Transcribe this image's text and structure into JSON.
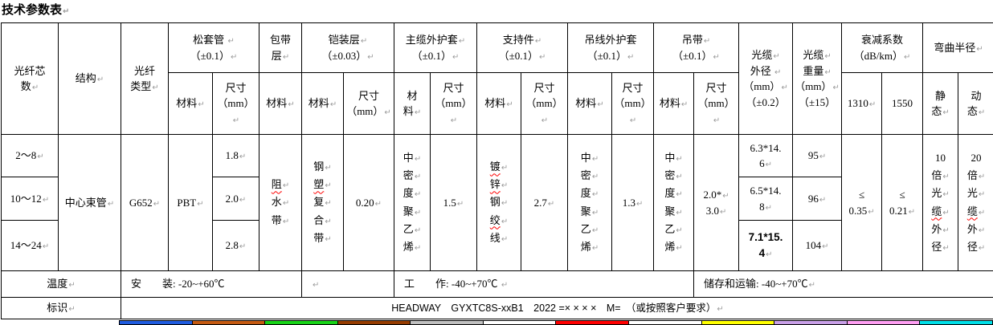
{
  "title": {
    "text": "技术参数表"
  },
  "marks": {
    "pilcrow": "↵"
  },
  "header": {
    "core": {
      "lines": [
        {
          "t": "光纤芯"
        },
        {
          "t": "数",
          "m": 1
        }
      ]
    },
    "structure": {
      "lines": [
        {
          "t": "结构",
          "m": 1
        }
      ]
    },
    "fiber_type": {
      "lines": [
        {
          "t": "光纤"
        },
        {
          "t": "类型",
          "m": 1
        }
      ]
    },
    "loose_tube": {
      "lines": [
        {
          "t": "松套管 ",
          "m": 1
        },
        {
          "t": "（±0.1）",
          "m": 1
        }
      ]
    },
    "wrap_layer": {
      "lines": [
        {
          "t": "包带"
        },
        {
          "t": "层",
          "m": 1
        }
      ]
    },
    "armor_layer": {
      "lines": [
        {
          "t": "铠装层",
          "m": 1
        },
        {
          "t": "（±0.03）",
          "m": 1
        }
      ]
    },
    "main_sheath": {
      "lines": [
        {
          "t": "主缆外护套",
          "m": 1
        },
        {
          "t": "（±0.1）",
          "m": 1
        }
      ]
    },
    "support": {
      "lines": [
        {
          "t": "支持件",
          "m": 1
        },
        {
          "t": "（±0.1）",
          "m": 1
        }
      ]
    },
    "msg_sheath": {
      "lines": [
        {
          "t": "吊线外护套"
        },
        {
          "t": "（±0.1）",
          "m": 1
        }
      ]
    },
    "strap": {
      "lines": [
        {
          "t": "吊带",
          "m": 1
        },
        {
          "t": "（±0.1）",
          "m": 1
        }
      ]
    },
    "cable_od": {
      "lines": [
        {
          "t": "光缆",
          "m": 1
        },
        {
          "t": "外径 ",
          "m": 1
        },
        {
          "t": "（mm）",
          "m": 1
        },
        {
          "t": "（±0.2）"
        }
      ]
    },
    "cable_weight": {
      "lines": [
        {
          "t": "光缆",
          "m": 1
        },
        {
          "t": "重量",
          "m": 1
        },
        {
          "t": "（mm）",
          "m": 1
        },
        {
          "t": "（±15）"
        }
      ]
    },
    "attenuation": {
      "lines": [
        {
          "t": "衰减系数"
        },
        {
          "t": "（dB/km）",
          "m": 1
        }
      ]
    },
    "bend_radius": {
      "lines": [
        {
          "t": "弯曲半径",
          "m": 1
        }
      ]
    },
    "material": {
      "lines": [
        {
          "t": "材料",
          "m": 1
        }
      ]
    },
    "material_stacked": {
      "lines": [
        {
          "t": "材"
        },
        {
          "t": "料",
          "m": 1
        }
      ]
    },
    "size_mm": {
      "lines": [
        {
          "t": "尺寸"
        },
        {
          "t": "（mm）",
          "m": 1
        }
      ]
    },
    "w1310": {
      "lines": [
        {
          "t": "1310",
          "m": 1
        }
      ]
    },
    "w1550": {
      "lines": [
        {
          "t": "1550"
        }
      ]
    },
    "static_col": {
      "lines": [
        {
          "t": "静"
        },
        {
          "t": "态",
          "m": 1
        }
      ]
    },
    "dynamic_col": {
      "lines": [
        {
          "t": "动"
        },
        {
          "t": "态",
          "m": 1
        }
      ]
    }
  },
  "body": {
    "cores": [
      {
        "lines": [
          {
            "t": "2～8",
            "m": 1
          }
        ]
      },
      {
        "lines": [
          {
            "t": "10～12",
            "m": 1
          }
        ]
      },
      {
        "lines": [
          {
            "t": "14～24",
            "m": 1
          }
        ]
      }
    ],
    "structure_val": {
      "lines": [
        {
          "t": "中心束管",
          "m": 1
        }
      ]
    },
    "fiber_type_val": {
      "lines": [
        {
          "t": "G652",
          "m": 1
        }
      ]
    },
    "loose_material": {
      "lines": [
        {
          "t": "PBT",
          "m": 1
        }
      ]
    },
    "loose_sizes": [
      {
        "lines": [
          {
            "t": "1.8",
            "m": 1
          }
        ]
      },
      {
        "lines": [
          {
            "t": "2.0",
            "m": 1
          }
        ]
      },
      {
        "lines": [
          {
            "t": "2.8",
            "m": 1
          }
        ]
      }
    ],
    "wrap_material_v": {
      "lines": [
        {
          "t": "阻",
          "m": 1,
          "sq": 1
        },
        {
          "t": "水",
          "m": 1
        },
        {
          "t": "带",
          "m": 1
        }
      ]
    },
    "armor_material_v": {
      "lines": [
        {
          "t": "钢",
          "m": 1
        },
        {
          "t": "塑",
          "m": 1,
          "sq": 1
        },
        {
          "t": "复",
          "m": 1
        },
        {
          "t": "合",
          "m": 1
        },
        {
          "t": "带",
          "m": 1
        }
      ]
    },
    "armor_size": {
      "lines": [
        {
          "t": "0.20",
          "m": 1
        }
      ]
    },
    "main_sheath_material_v": {
      "lines": [
        {
          "t": "中",
          "m": 1
        },
        {
          "t": "密",
          "m": 1
        },
        {
          "t": "度",
          "m": 1
        },
        {
          "t": "聚",
          "m": 1
        },
        {
          "t": "乙",
          "m": 1
        },
        {
          "t": "烯",
          "m": 1
        }
      ]
    },
    "main_sheath_size": {
      "lines": [
        {
          "t": "1.5",
          "m": 1
        }
      ]
    },
    "support_material_v": {
      "lines": [
        {
          "t": "镀",
          "m": 1,
          "sq": 1
        },
        {
          "t": "锌",
          "m": 1,
          "sq": 1
        },
        {
          "t": "钢",
          "m": 1
        },
        {
          "t": "绞",
          "m": 1,
          "sq": 1
        },
        {
          "t": "线",
          "m": 1
        }
      ]
    },
    "support_size": {
      "lines": [
        {
          "t": "2.7",
          "m": 1
        }
      ]
    },
    "msg_sheath_material_v": {
      "lines": [
        {
          "t": "中",
          "m": 1
        },
        {
          "t": "密",
          "m": 1
        },
        {
          "t": "度",
          "m": 1
        },
        {
          "t": "聚",
          "m": 1
        },
        {
          "t": "乙",
          "m": 1
        },
        {
          "t": "烯",
          "m": 1
        }
      ]
    },
    "msg_sheath_size": {
      "lines": [
        {
          "t": "1.3",
          "m": 1
        }
      ]
    },
    "strap_material_v": {
      "lines": [
        {
          "t": "中",
          "m": 1
        },
        {
          "t": "密",
          "m": 1
        },
        {
          "t": "度",
          "m": 1
        },
        {
          "t": "聚",
          "m": 1
        },
        {
          "t": "乙",
          "m": 1
        },
        {
          "t": "烯",
          "m": 1
        }
      ]
    },
    "strap_size": {
      "lines": [
        {
          "t": "2.0*",
          "m": 1
        },
        {
          "t": "3.0",
          "m": 1
        }
      ]
    },
    "od_vals": [
      {
        "lines": [
          {
            "t": "6.3*14."
          },
          {
            "t": "6",
            "m": 1
          }
        ]
      },
      {
        "lines": [
          {
            "t": "6.5*14."
          },
          {
            "t": "8",
            "m": 1
          }
        ]
      },
      {
        "lines": [
          {
            "t": "7.1*15.",
            "b": 1
          },
          {
            "t": "4",
            "m": 1,
            "b": 1
          }
        ]
      }
    ],
    "weights": [
      {
        "lines": [
          {
            "t": "95",
            "m": 1
          }
        ]
      },
      {
        "lines": [
          {
            "t": "96",
            "m": 1
          }
        ]
      },
      {
        "lines": [
          {
            "t": "104",
            "m": 1
          }
        ]
      }
    ],
    "att_1310": {
      "lines": [
        {
          "t": "≤"
        },
        {
          "t": "0.35",
          "m": 1
        }
      ]
    },
    "att_1550": {
      "lines": [
        {
          "t": "≤"
        },
        {
          "t": "0.21",
          "m": 1
        }
      ]
    },
    "bend_static_v": {
      "lines": [
        {
          "t": "10"
        },
        {
          "t": "倍",
          "m": 1
        },
        {
          "t": "光",
          "m": 1
        },
        {
          "t": "缆",
          "m": 1,
          "sq": 1
        },
        {
          "t": "外",
          "m": 1
        },
        {
          "t": "径",
          "m": 1
        }
      ]
    },
    "bend_dynamic_v": {
      "lines": [
        {
          "t": "20"
        },
        {
          "t": "倍",
          "m": 1
        },
        {
          "t": "光",
          "m": 1
        },
        {
          "t": "缆",
          "m": 1,
          "sq": 1
        },
        {
          "t": "外",
          "m": 1
        },
        {
          "t": "径",
          "m": 1
        }
      ]
    }
  },
  "temperature": {
    "label": {
      "lines": [
        {
          "t": "温度",
          "m": 1
        }
      ]
    },
    "install": {
      "lines": [
        {
          "t": "安　　装: -20~+60℃"
        }
      ]
    },
    "empty": {
      "lines": [
        {
          "t": "",
          "m": 1
        }
      ]
    },
    "work": {
      "lines": [
        {
          "t": "工　　作: -40~+70℃ ",
          "m": 1
        }
      ]
    },
    "storage": {
      "lines": [
        {
          "t": "储存和运输: -40~+70℃",
          "m": 1
        }
      ]
    }
  },
  "identification": {
    "label": {
      "lines": [
        {
          "t": "标识",
          "m": 1
        }
      ]
    },
    "content": {
      "lines": [
        {
          "t": "HEADWAY　GYXTC8S-xxB1　2022 =× × × ×　M=　（或按照客户要求）",
          "m": 1
        }
      ]
    }
  },
  "strip": {
    "colors": [
      "#1f5ce0",
      "#c55a11",
      "#17d417",
      "#963c00",
      "#c0c0c0",
      "#ffffff",
      "#ff0000",
      "#ffffff",
      "#ffff00",
      "#c9a0e8",
      "#ff9ff3",
      "#00dfe8"
    ]
  }
}
